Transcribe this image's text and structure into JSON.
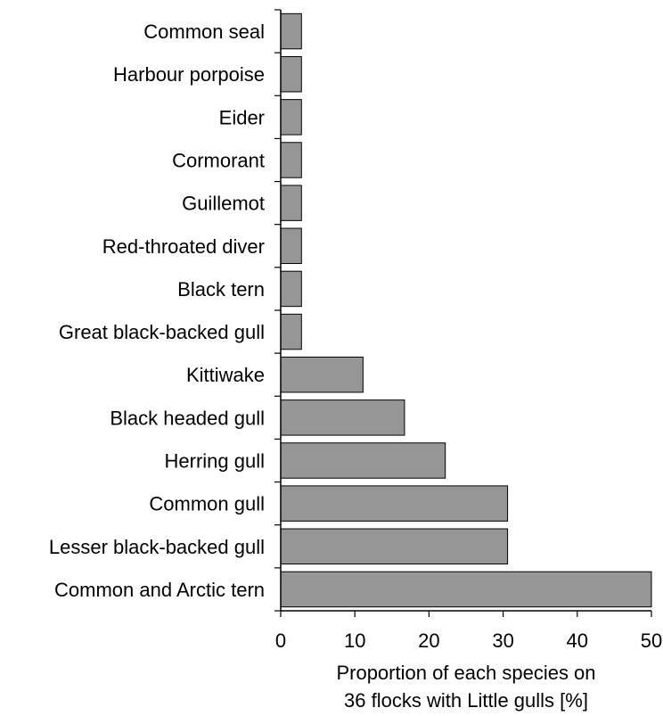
{
  "chart_data": {
    "type": "bar",
    "orientation": "horizontal",
    "categories": [
      "Common seal",
      "Harbour porpoise",
      "Eider",
      "Cormorant",
      "Guillemot",
      "Red-throated diver",
      "Black tern",
      "Great black-backed gull",
      "Kittiwake",
      "Black headed gull",
      "Herring gull",
      "Common gull",
      "Lesser black-backed gull",
      "Common and Arctic tern"
    ],
    "values": [
      2.8,
      2.8,
      2.8,
      2.8,
      2.8,
      2.8,
      2.8,
      2.8,
      11.1,
      16.7,
      22.2,
      30.6,
      30.6,
      50.0
    ],
    "xlabel_line1": "Proportion of each species on",
    "xlabel_line2": "36 flocks with Little gulls [%]",
    "xlim": [
      0,
      50
    ],
    "x_ticks": [
      "0",
      "10",
      "20",
      "30",
      "40",
      "50"
    ],
    "grid": false,
    "legend": "none",
    "bar_color": "#969696",
    "bar_stroke": "#000000"
  }
}
